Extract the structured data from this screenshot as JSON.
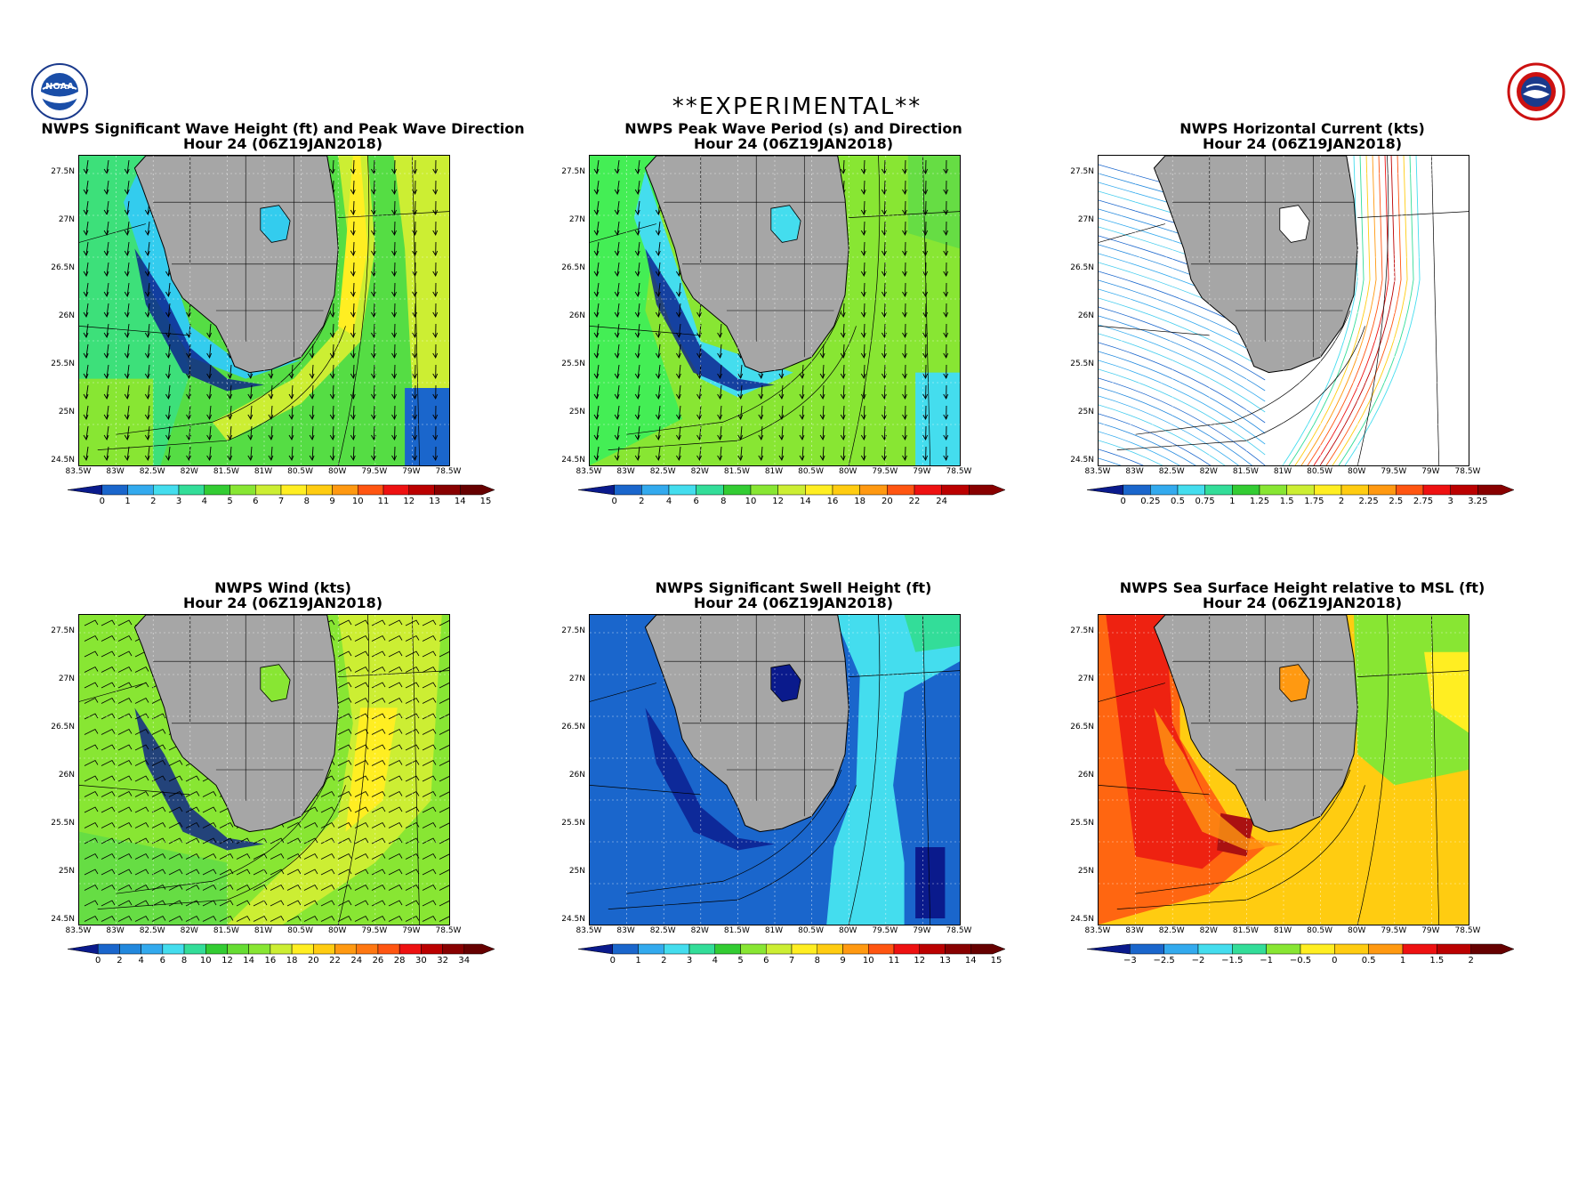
{
  "banner": "**EXPERIMENTAL**",
  "logos": {
    "noaa": {
      "text": "NOAA",
      "ring": "NATIONAL OCEANIC AND ATMOSPHERIC ADMINISTRATION · U.S. DEPARTMENT OF COMMERCE"
    },
    "nws": {
      "ring": "NATIONAL WEATHER SERVICE"
    }
  },
  "lat_ticks": [
    "27.5N",
    "27N",
    "26.5N",
    "26N",
    "25.5N",
    "25N",
    "24.5N"
  ],
  "lon_ticks": [
    "83.5W",
    "83W",
    "82.5W",
    "82W",
    "81.5W",
    "81W",
    "80.5W",
    "80W",
    "79.5W",
    "79W",
    "78.5W"
  ],
  "panels": [
    {
      "title": "NWPS Significant Wave Height (ft) and Peak Wave Direction",
      "subtitle": "Hour 24 (06Z19JAN2018)",
      "overlay": "arrows-down",
      "field": "swh",
      "colorbar": {
        "labels": [
          "0",
          "1",
          "2",
          "3",
          "4",
          "5",
          "6",
          "7",
          "8",
          "9",
          "10",
          "11",
          "12",
          "13",
          "14",
          "15"
        ],
        "colors": [
          "#0a1a8c",
          "#1a66cc",
          "#33aaee",
          "#44ddee",
          "#33dd99",
          "#33cc33",
          "#88e633",
          "#ccee33",
          "#ffee22",
          "#ffcc11",
          "#ff9911",
          "#ff5511",
          "#ee1111",
          "#bb0000",
          "#880000",
          "#660000"
        ]
      }
    },
    {
      "title": "NWPS Peak Wave Period (s) and Direction",
      "subtitle": "Hour 24 (06Z19JAN2018)",
      "overlay": "arrows-down",
      "field": "period",
      "colorbar": {
        "labels": [
          "0",
          "2",
          "4",
          "6",
          "8",
          "10",
          "12",
          "14",
          "16",
          "18",
          "20",
          "22",
          "24"
        ],
        "colors": [
          "#0a1a8c",
          "#1a66cc",
          "#33aaee",
          "#44ddee",
          "#33dd99",
          "#33cc33",
          "#88e633",
          "#ccee33",
          "#ffee22",
          "#ffcc11",
          "#ff9911",
          "#ff5511",
          "#ee1111",
          "#bb0000",
          "#880000"
        ]
      }
    },
    {
      "title": "NWPS Horizontal Current (kts)",
      "subtitle": "Hour 24 (06Z19JAN2018)",
      "overlay": "streamlines",
      "field": "current",
      "colorbar": {
        "labels": [
          "0",
          "0.25",
          "0.5",
          "0.75",
          "1",
          "1.25",
          "1.5",
          "1.75",
          "2",
          "2.25",
          "2.5",
          "2.75",
          "3",
          "3.25"
        ],
        "colors": [
          "#0a1a8c",
          "#1a66cc",
          "#33aaee",
          "#44ddee",
          "#33dd99",
          "#33cc33",
          "#88e633",
          "#ccee33",
          "#ffee22",
          "#ffcc11",
          "#ff9911",
          "#ff5511",
          "#ee1111",
          "#bb0000",
          "#880000"
        ]
      }
    },
    {
      "title": "NWPS Wind (kts)",
      "subtitle": "Hour 24 (06Z19JAN2018)",
      "overlay": "barbs",
      "field": "wind",
      "colorbar": {
        "labels": [
          "0",
          "2",
          "4",
          "6",
          "8",
          "10",
          "12",
          "14",
          "16",
          "18",
          "20",
          "22",
          "24",
          "26",
          "28",
          "30",
          "32",
          "34"
        ],
        "colors": [
          "#0a1a8c",
          "#1a66cc",
          "#2288dd",
          "#33aaee",
          "#44ddee",
          "#33dd99",
          "#33cc33",
          "#66dd33",
          "#88e633",
          "#ccee33",
          "#ffee22",
          "#ffcc11",
          "#ff9911",
          "#ff7711",
          "#ff5511",
          "#ee1111",
          "#bb0000",
          "#880000",
          "#660000"
        ]
      }
    },
    {
      "title": "NWPS Significant Swell Height (ft)",
      "subtitle": "Hour 24 (06Z19JAN2018)",
      "overlay": "none",
      "field": "swell",
      "colorbar": {
        "labels": [
          "0",
          "1",
          "2",
          "3",
          "4",
          "5",
          "6",
          "7",
          "8",
          "9",
          "10",
          "11",
          "12",
          "13",
          "14",
          "15"
        ],
        "colors": [
          "#0a1a8c",
          "#1a66cc",
          "#33aaee",
          "#44ddee",
          "#33dd99",
          "#33cc33",
          "#88e633",
          "#ccee33",
          "#ffee22",
          "#ffcc11",
          "#ff9911",
          "#ff5511",
          "#ee1111",
          "#bb0000",
          "#880000",
          "#660000"
        ]
      }
    },
    {
      "title": "NWPS Sea Surface Height relative to MSL (ft)",
      "subtitle": "Hour 24 (06Z19JAN2018)",
      "overlay": "none",
      "field": "ssh",
      "colorbar": {
        "labels": [
          "−3",
          "−2.5",
          "−2",
          "−1.5",
          "−1",
          "−0.5",
          "0",
          "0.5",
          "1",
          "1.5",
          "2"
        ],
        "colors": [
          "#0a1a8c",
          "#1a66cc",
          "#33aaee",
          "#44ddee",
          "#33dd99",
          "#88e633",
          "#ffee22",
          "#ffcc11",
          "#ff9911",
          "#ee1111",
          "#bb0000",
          "#660000"
        ]
      }
    }
  ]
}
